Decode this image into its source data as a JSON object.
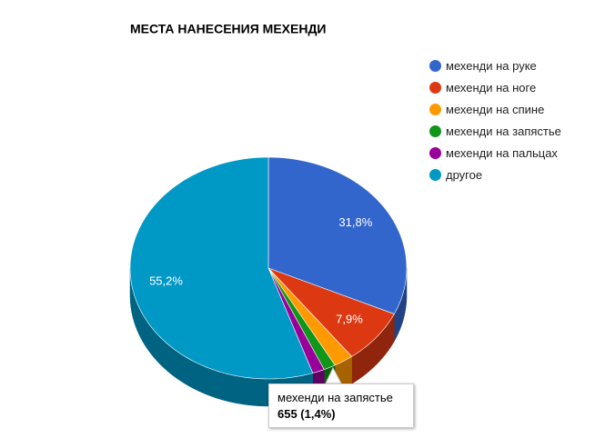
{
  "chart_data": {
    "type": "pie",
    "title": "МЕСТА НАНЕСЕНИЯ МЕХЕНДИ",
    "categories": [
      "мехенди на руке",
      "мехенди на ноге",
      "мехенди на спине",
      "мехенди на запястье",
      "мехенди на пальцах",
      "другое"
    ],
    "values": [
      31.8,
      7.9,
      2.3,
      1.4,
      1.4,
      55.2
    ],
    "value_labels": [
      "31,8%",
      "7,9%",
      null,
      null,
      null,
      "55,2%"
    ],
    "colors": [
      "#3366cc",
      "#dc3912",
      "#ff9900",
      "#109618",
      "#990099",
      "#0099c6"
    ],
    "legend": "right"
  },
  "tooltip": {
    "title": "мехенди на запястье",
    "text": "655 (1,4%)"
  }
}
